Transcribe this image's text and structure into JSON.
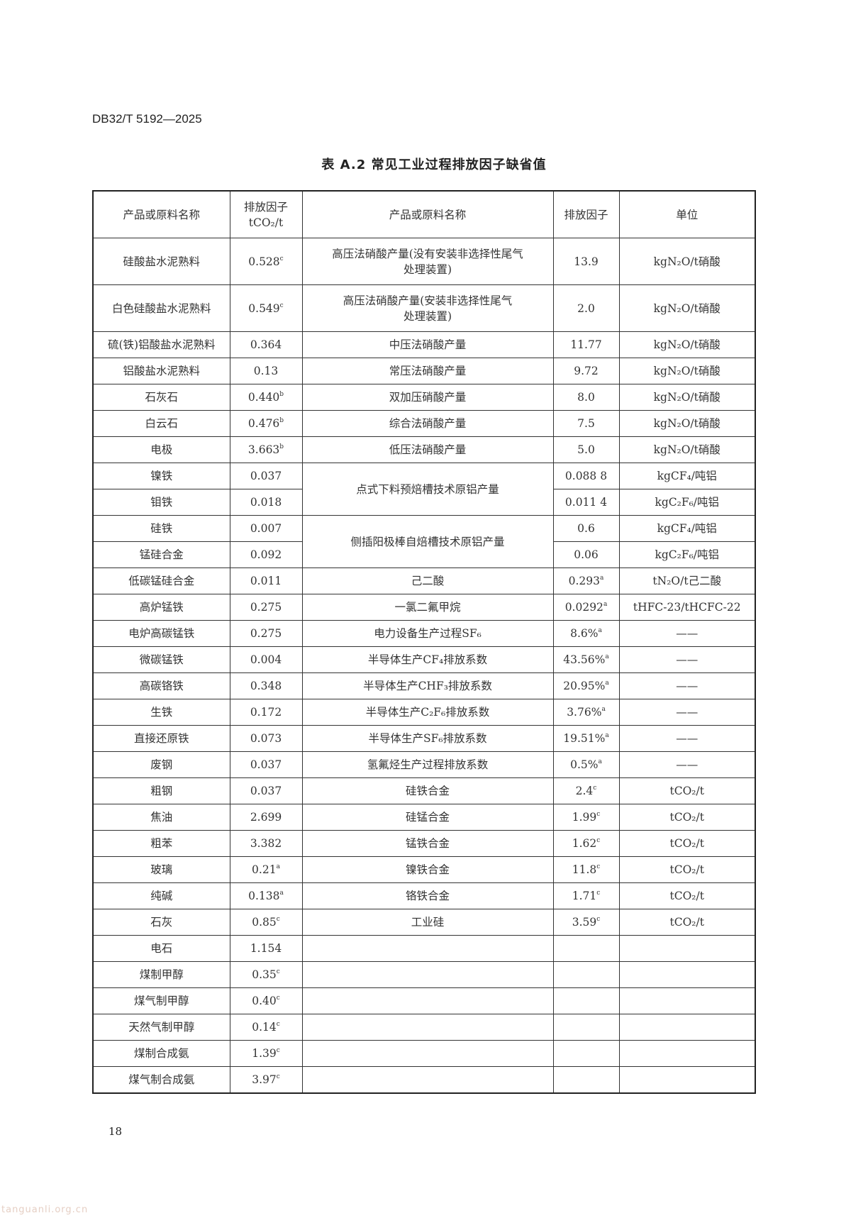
{
  "header": {
    "doc_id": "DB32/T 5192—2025",
    "table_title": "表 A.2  常见工业过程排放因子缺省值"
  },
  "table": {
    "columns": [
      [
        "产品或原料名称"
      ],
      [
        "排放因子",
        "tCO₂/t"
      ],
      [
        "产品或原料名称"
      ],
      [
        "排放因子"
      ],
      [
        "单位"
      ]
    ],
    "rows": [
      {
        "l": [
          "硅酸盐水泥熟料",
          "0.528",
          "c"
        ],
        "r": [
          [
            "高压法硝酸产量(没有安装非选择性尾气",
            "处理装置)"
          ],
          "13.9",
          "",
          "kgN₂O/t硝酸"
        ]
      },
      {
        "l": [
          "白色硅酸盐水泥熟料",
          "0.549",
          "c"
        ],
        "r": [
          [
            "高压法硝酸产量(安装非选择性尾气",
            "处理装置)"
          ],
          "2.0",
          "",
          "kgN₂O/t硝酸"
        ]
      },
      {
        "l": [
          "硫(铁)铝酸盐水泥熟料",
          "0.364",
          ""
        ],
        "r": [
          [
            "中压法硝酸产量"
          ],
          "11.77",
          "",
          "kgN₂O/t硝酸"
        ]
      },
      {
        "l": [
          "铝酸盐水泥熟料",
          "0.13",
          ""
        ],
        "r": [
          [
            "常压法硝酸产量"
          ],
          "9.72",
          "",
          "kgN₂O/t硝酸"
        ]
      },
      {
        "l": [
          "石灰石",
          "0.440",
          "b"
        ],
        "r": [
          [
            "双加压硝酸产量"
          ],
          "8.0",
          "",
          "kgN₂O/t硝酸"
        ]
      },
      {
        "l": [
          "白云石",
          "0.476",
          "b"
        ],
        "r": [
          [
            "综合法硝酸产量"
          ],
          "7.5",
          "",
          "kgN₂O/t硝酸"
        ]
      },
      {
        "l": [
          "电极",
          "3.663",
          "b"
        ],
        "r": [
          [
            "低压法硝酸产量"
          ],
          "5.0",
          "",
          "kgN₂O/t硝酸"
        ]
      },
      {
        "l": [
          "镍铁",
          "0.037",
          ""
        ],
        "r": [
          [
            "点式下料预焙槽技术原铝产量"
          ],
          "0.088 8",
          "",
          "kgCF₄/吨铝"
        ],
        "span": 2
      },
      {
        "l": [
          "钼铁",
          "0.018",
          ""
        ],
        "r": [
          null,
          "0.011 4",
          "",
          "kgC₂F₆/吨铝"
        ]
      },
      {
        "l": [
          "硅铁",
          "0.007",
          ""
        ],
        "r": [
          [
            "侧插阳极棒自焙槽技术原铝产量"
          ],
          "0.6",
          "",
          "kgCF₄/吨铝"
        ],
        "span": 2
      },
      {
        "l": [
          "锰硅合金",
          "0.092",
          ""
        ],
        "r": [
          null,
          "0.06",
          "",
          "kgC₂F₆/吨铝"
        ]
      },
      {
        "l": [
          "低碳锰硅合金",
          "0.011",
          ""
        ],
        "r": [
          [
            "己二酸"
          ],
          "0.293",
          "a",
          "tN₂O/t己二酸"
        ]
      },
      {
        "l": [
          "高炉锰铁",
          "0.275",
          ""
        ],
        "r": [
          [
            "一氯二氟甲烷"
          ],
          "0.0292",
          "a",
          "tHFC-23/tHCFC-22"
        ]
      },
      {
        "l": [
          "电炉高碳锰铁",
          "0.275",
          ""
        ],
        "r": [
          [
            "电力设备生产过程SF₆"
          ],
          "8.6%",
          "a",
          "——"
        ]
      },
      {
        "l": [
          "微碳锰铁",
          "0.004",
          ""
        ],
        "r": [
          [
            "半导体生产CF₄排放系数"
          ],
          "43.56%",
          "a",
          "——"
        ]
      },
      {
        "l": [
          "高碳铬铁",
          "0.348",
          ""
        ],
        "r": [
          [
            "半导体生产CHF₃排放系数"
          ],
          "20.95%",
          "a",
          "——"
        ]
      },
      {
        "l": [
          "生铁",
          "0.172",
          ""
        ],
        "r": [
          [
            "半导体生产C₂F₆排放系数"
          ],
          "3.76%",
          "a",
          "——"
        ]
      },
      {
        "l": [
          "直接还原铁",
          "0.073",
          ""
        ],
        "r": [
          [
            "半导体生产SF₆排放系数"
          ],
          "19.51%",
          "a",
          "——"
        ]
      },
      {
        "l": [
          "废钢",
          "0.037",
          ""
        ],
        "r": [
          [
            "氢氟烃生产过程排放系数"
          ],
          "0.5%",
          "a",
          "——"
        ]
      },
      {
        "l": [
          "粗钢",
          "0.037",
          ""
        ],
        "r": [
          [
            "硅铁合金"
          ],
          "2.4",
          "c",
          "tCO₂/t"
        ]
      },
      {
        "l": [
          "焦油",
          "2.699",
          ""
        ],
        "r": [
          [
            "硅锰合金"
          ],
          "1.99",
          "c",
          "tCO₂/t"
        ]
      },
      {
        "l": [
          "粗苯",
          "3.382",
          ""
        ],
        "r": [
          [
            "锰铁合金"
          ],
          "1.62",
          "c",
          "tCO₂/t"
        ]
      },
      {
        "l": [
          "玻璃",
          "0.21",
          "a"
        ],
        "r": [
          [
            "镍铁合金"
          ],
          "11.8",
          "c",
          "tCO₂/t"
        ]
      },
      {
        "l": [
          "纯碱",
          "0.138",
          "a"
        ],
        "r": [
          [
            "铬铁合金"
          ],
          "1.71",
          "c",
          "tCO₂/t"
        ]
      },
      {
        "l": [
          "石灰",
          "0.85",
          "c"
        ],
        "r": [
          [
            "工业硅"
          ],
          "3.59",
          "c",
          "tCO₂/t"
        ]
      },
      {
        "l": [
          "电石",
          "1.154",
          ""
        ],
        "r": [
          [
            ""
          ],
          "",
          "",
          ""
        ]
      },
      {
        "l": [
          "煤制甲醇",
          "0.35",
          "c"
        ],
        "r": [
          [
            ""
          ],
          "",
          "",
          ""
        ]
      },
      {
        "l": [
          "煤气制甲醇",
          "0.40",
          "c"
        ],
        "r": [
          [
            ""
          ],
          "",
          "",
          ""
        ]
      },
      {
        "l": [
          "天然气制甲醇",
          "0.14",
          "c"
        ],
        "r": [
          [
            ""
          ],
          "",
          "",
          ""
        ]
      },
      {
        "l": [
          "煤制合成氨",
          "1.39",
          "c"
        ],
        "r": [
          [
            ""
          ],
          "",
          "",
          ""
        ]
      },
      {
        "l": [
          "煤气制合成氨",
          "3.97",
          "c"
        ],
        "r": [
          [
            ""
          ],
          "",
          "",
          ""
        ]
      }
    ]
  },
  "footer": {
    "page_number": "18",
    "watermark": "tanguanli.org.cn"
  }
}
